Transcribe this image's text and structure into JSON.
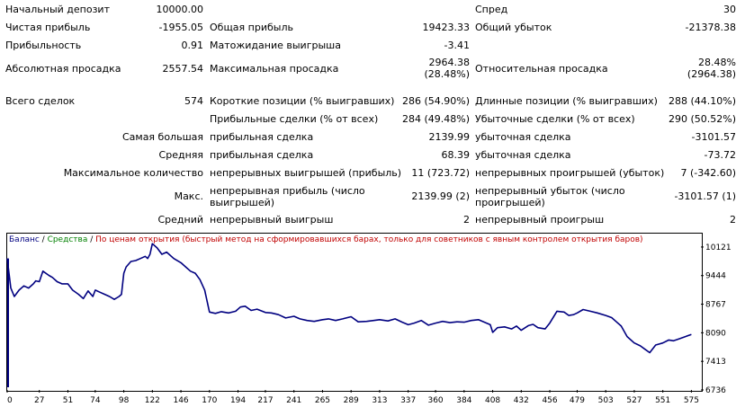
{
  "stats": {
    "initial_deposit": {
      "label": "Начальный депозит",
      "value": "10000.00"
    },
    "spread": {
      "label": "Спред",
      "value": "30"
    },
    "net_profit": {
      "label": "Чистая прибыль",
      "value": "-1955.05"
    },
    "gross_profit": {
      "label": "Общая прибыль",
      "value": "19423.33"
    },
    "gross_loss": {
      "label": "Общий убыток",
      "value": "-21378.38"
    },
    "profit_factor": {
      "label": "Прибыльность",
      "value": "0.91"
    },
    "expected_payoff": {
      "label": "Матожидание выигрыша",
      "value": "-3.41"
    },
    "absolute_drawdown": {
      "label": "Абсолютная просадка",
      "value": "2557.54"
    },
    "maximal_drawdown": {
      "label": "Максимальная просадка",
      "value_line1": "2964.38",
      "value_line2": "(28.48%)"
    },
    "relative_drawdown": {
      "label": "Относительная просадка",
      "value_line1": "28.48%",
      "value_line2": "(2964.38)"
    },
    "total_trades": {
      "label": "Всего сделок",
      "value": "574"
    },
    "short_positions": {
      "label": "Короткие позиции (% выигравших)",
      "value": "286 (54.90%)"
    },
    "long_positions": {
      "label": "Длинные позиции (% выигравших)",
      "value": "288 (44.10%)"
    },
    "profit_trades": {
      "label": "Прибыльные сделки (% от всех)",
      "value": "284 (49.48%)"
    },
    "loss_trades": {
      "label": "Убыточные сделки (% от всех)",
      "value": "290 (50.52%)"
    },
    "largest": {
      "label": "Самая большая",
      "profit_label": "прибыльная сделка",
      "profit_value": "2139.99",
      "loss_label": "убыточная сделка",
      "loss_value": "-3101.57"
    },
    "average": {
      "label": "Средняя",
      "profit_label": "прибыльная сделка",
      "profit_value": "68.39",
      "loss_label": "убыточная сделка",
      "loss_value": "-73.72"
    },
    "max_consecutive": {
      "label": "Максимальное количество",
      "wins_label": "непрерывных выигрышей (прибыль)",
      "wins_value": "11 (723.72)",
      "losses_label": "непрерывных проигрышей (убыток)",
      "losses_value": "7 (-342.60)"
    },
    "max_consecutive_amount": {
      "label": "Макс.",
      "profit_label": "непрерывная прибыль (число выигрышей)",
      "profit_value": "2139.99 (2)",
      "loss_label": "непрерывный убыток (число проигрышей)",
      "loss_value": "-3101.57 (1)"
    },
    "avg_consecutive": {
      "label": "Средний",
      "wins_label": "непрерывный выигрыш",
      "wins_value": "2",
      "losses_label": "непрерывный проигрыш",
      "losses_value": "2"
    }
  },
  "chart_data": {
    "type": "line",
    "legend": {
      "balance": "Баланс",
      "sep1": " / ",
      "equity": "Средства",
      "sep2": " / ",
      "note": "По ценам открытия (быстрый метод на сформировавшихся барах, только для советников с явным контролем открытия баров)"
    },
    "x_ticks": [
      "0",
      "27",
      "51",
      "74",
      "98",
      "122",
      "146",
      "170",
      "194",
      "217",
      "241",
      "265",
      "289",
      "313",
      "337",
      "360",
      "384",
      "408",
      "432",
      "456",
      "479",
      "503",
      "527",
      "551",
      "575"
    ],
    "y_ticks": [
      "10121",
      "9444",
      "8767",
      "8090",
      "7413",
      "6736"
    ],
    "xlim": [
      0,
      583
    ],
    "ylim": [
      6736,
      10460
    ],
    "line_color": "#000080",
    "series": [
      {
        "x": [
          0,
          3,
          6,
          10,
          14,
          18,
          22,
          24,
          27,
          30,
          35,
          38,
          42,
          46,
          51,
          55,
          60,
          64,
          68,
          72,
          74,
          78,
          82,
          86,
          90,
          94,
          96,
          98,
          100,
          104,
          108,
          112,
          116,
          118,
          120,
          122,
          126,
          130,
          134,
          140,
          146,
          150,
          154,
          158,
          162,
          166,
          170,
          175,
          180,
          186,
          192,
          196,
          200,
          205,
          210,
          217,
          222,
          228,
          234,
          241,
          246,
          252,
          258,
          265,
          270,
          276,
          282,
          289,
          295,
          302,
          308,
          313,
          320,
          326,
          332,
          337,
          342,
          348,
          354,
          360,
          366,
          372,
          378,
          384,
          390,
          396,
          402,
          406,
          408,
          412,
          418,
          424,
          428,
          432,
          438,
          442,
          446,
          452,
          456,
          462,
          468,
          472,
          476,
          479,
          484,
          490,
          496,
          503,
          508,
          512,
          516,
          521,
          527,
          532,
          536,
          540,
          545,
          551,
          556,
          560,
          565,
          570,
          575
        ],
        "y": [
          9850,
          9150,
          8950,
          9100,
          9200,
          9150,
          9250,
          9320,
          9300,
          9550,
          9450,
          9400,
          9300,
          9250,
          9250,
          9100,
          9000,
          8900,
          9080,
          8950,
          9100,
          9050,
          9000,
          8950,
          8880,
          8950,
          9000,
          9500,
          9650,
          9780,
          9800,
          9850,
          9900,
          9850,
          9950,
          10200,
          10100,
          9950,
          10000,
          9850,
          9750,
          9650,
          9550,
          9500,
          9350,
          9100,
          8580,
          8550,
          8590,
          8560,
          8600,
          8700,
          8720,
          8620,
          8650,
          8570,
          8560,
          8520,
          8440,
          8480,
          8420,
          8380,
          8360,
          8400,
          8420,
          8380,
          8420,
          8470,
          8350,
          8360,
          8380,
          8400,
          8370,
          8420,
          8340,
          8280,
          8320,
          8380,
          8270,
          8320,
          8360,
          8330,
          8350,
          8340,
          8380,
          8400,
          8330,
          8280,
          8100,
          8210,
          8230,
          8180,
          8250,
          8150,
          8260,
          8290,
          8210,
          8180,
          8320,
          8600,
          8580,
          8500,
          8520,
          8560,
          8640,
          8600,
          8560,
          8500,
          8450,
          8350,
          8250,
          8000,
          7850,
          7780,
          7700,
          7620,
          7800,
          7850,
          7920,
          7900,
          7950,
          8000,
          8050
        ]
      }
    ]
  }
}
